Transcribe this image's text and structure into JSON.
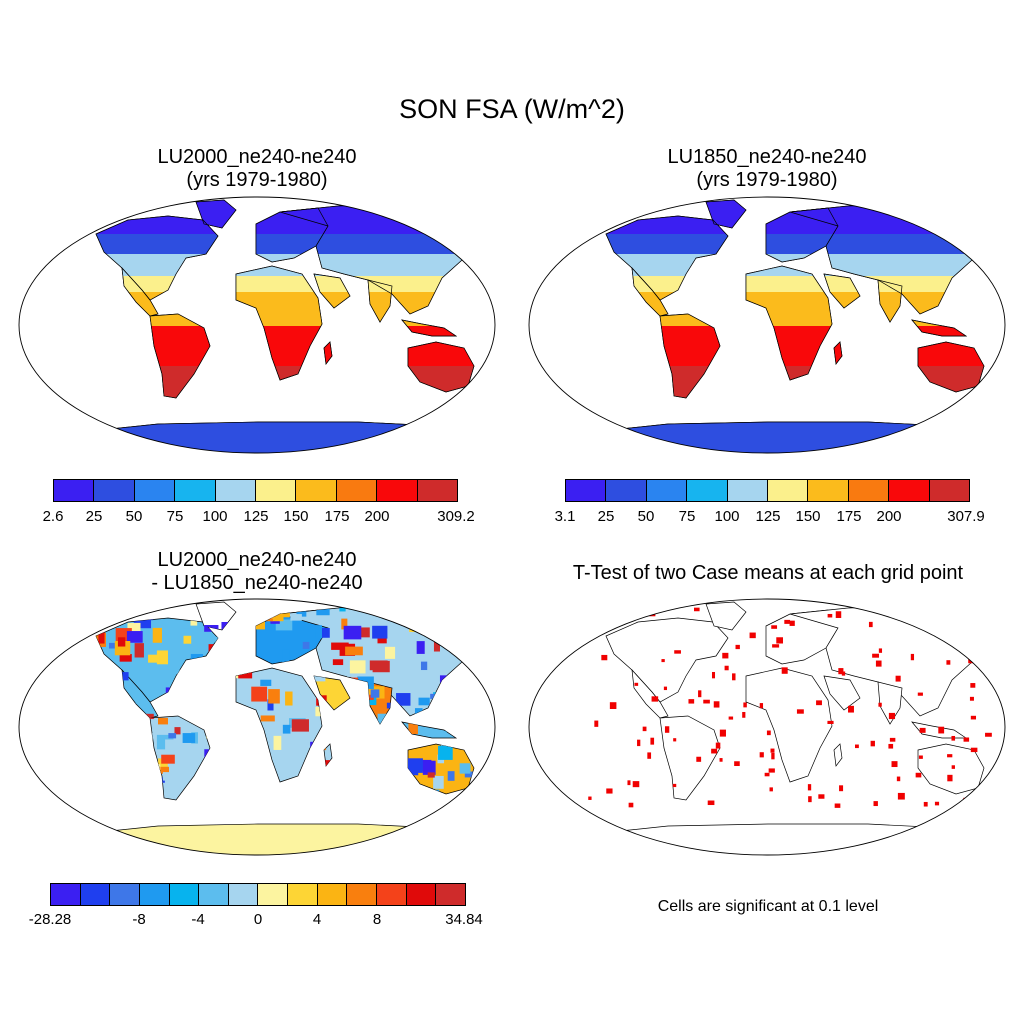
{
  "title": "SON FSA (W/m^2)",
  "panels": [
    {
      "title_line1": "LU2000_ne240-ne240",
      "title_line2": "(yrs 1979-1980)"
    },
    {
      "title_line1": "LU1850_ne240-ne240",
      "title_line2": "(yrs 1979-1980)"
    },
    {
      "title_line1": "LU2000_ne240-ne240",
      "title_line2": "- LU1850_ne240-ne240"
    },
    {
      "title_line1": "T-Test of two Case means at each grid point"
    }
  ],
  "colorbars": [
    {
      "colors": [
        "#3b1ff2",
        "#2e4ee0",
        "#2a84f0",
        "#17b4ef",
        "#a6d5ef",
        "#fbf08c",
        "#fbbb1c",
        "#f97a10",
        "#f9080a",
        "#cf2b2b"
      ],
      "labels": [
        "2.6",
        "25",
        "50",
        "75",
        "100",
        "125",
        "150",
        "175",
        "200",
        "309.2"
      ]
    },
    {
      "colors": [
        "#3b1ff2",
        "#2e4ee0",
        "#2a84f0",
        "#17b4ef",
        "#a6d5ef",
        "#fbf08c",
        "#fbbb1c",
        "#f97a10",
        "#f9080a",
        "#cf2b2b"
      ],
      "labels": [
        "3.1",
        "25",
        "50",
        "75",
        "100",
        "125",
        "150",
        "175",
        "200",
        "307.9"
      ]
    },
    {
      "colors": [
        "#3b1ff2",
        "#1f3fef",
        "#3e77e8",
        "#1f9af0",
        "#07b3ee",
        "#5cbdee",
        "#a6d5ef",
        "#fcf4a0",
        "#fdd535",
        "#fbb413",
        "#f97f0e",
        "#f4421a",
        "#e00a0a",
        "#cf2b2b"
      ],
      "labels": [
        "-28.28",
        "-8",
        "-4",
        "0",
        "4",
        "8",
        "34.84"
      ]
    }
  ],
  "note": "Cells are significant at 0.1 level"
}
